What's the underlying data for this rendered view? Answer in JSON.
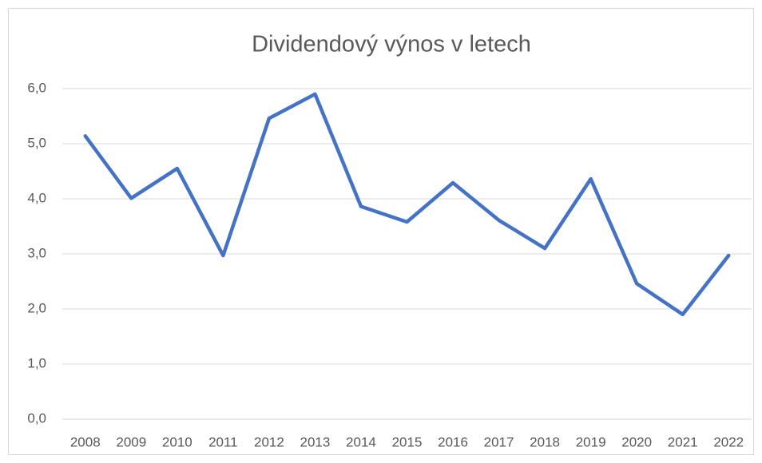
{
  "chart_data": {
    "type": "line",
    "title": "Dividendový výnos v letech",
    "categories": [
      "2008",
      "2009",
      "2010",
      "2011",
      "2012",
      "2013",
      "2014",
      "2015",
      "2016",
      "2017",
      "2018",
      "2019",
      "2020",
      "2021",
      "2022"
    ],
    "values": [
      5.14,
      4.01,
      4.55,
      2.97,
      5.46,
      5.9,
      3.86,
      3.58,
      4.29,
      3.61,
      3.1,
      4.36,
      2.46,
      1.9,
      2.97
    ],
    "color": "#4472c4",
    "ylim": [
      0,
      6
    ],
    "yticks": [
      {
        "value": 0,
        "label": "0,0"
      },
      {
        "value": 1,
        "label": "1,0"
      },
      {
        "value": 2,
        "label": "2,0"
      },
      {
        "value": 3,
        "label": "3,0"
      },
      {
        "value": 4,
        "label": "4,0"
      },
      {
        "value": 5,
        "label": "5,0"
      },
      {
        "value": 6,
        "label": "6,0"
      }
    ],
    "grid": true
  }
}
